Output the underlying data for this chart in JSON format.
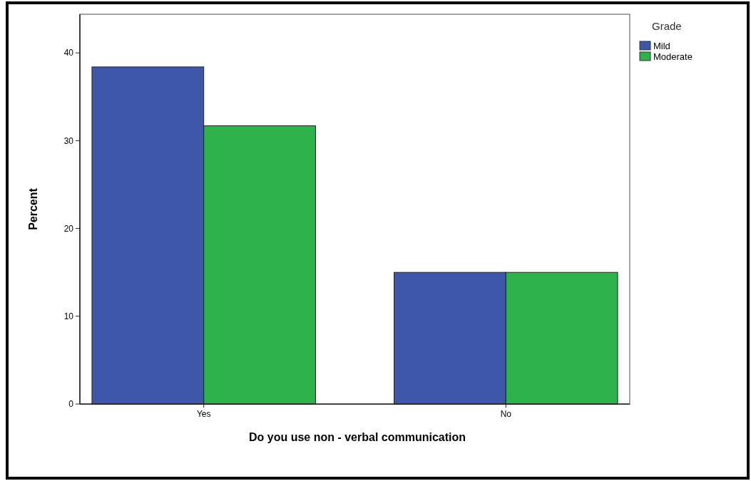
{
  "chart_data": {
    "type": "bar",
    "xlabel": "Do you use non - verbal communication",
    "ylabel": "Percent",
    "legend_title": "Grade",
    "categories": [
      "Yes",
      "No"
    ],
    "series": [
      {
        "name": "Mild",
        "color": "#3f57a8",
        "values": [
          38.4,
          15.0
        ]
      },
      {
        "name": "Moderate",
        "color": "#2db34a",
        "values": [
          31.7,
          15.0
        ]
      }
    ],
    "ylim": [
      0,
      44.4
    ],
    "yticks": [
      0,
      10,
      20,
      30,
      40
    ],
    "legend": "top right",
    "grid": false
  }
}
